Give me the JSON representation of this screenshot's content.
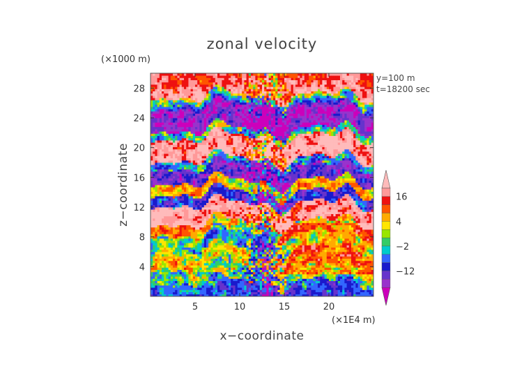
{
  "chart_data": {
    "type": "heatmap",
    "title": "zonal velocity",
    "xlabel": "x−coordinate",
    "ylabel": "z−coordinate",
    "x_unit": "(×1E4 m)",
    "y_unit": "(×1000 m)",
    "annotations": [
      "y=100 m",
      "t=18200 sec"
    ],
    "xlim": [
      0,
      25
    ],
    "ylim": [
      0,
      30
    ],
    "x_ticks": [
      5,
      10,
      15,
      20
    ],
    "x_tick_labels": [
      "5",
      "10",
      "15",
      "20"
    ],
    "y_ticks": [
      4,
      8,
      12,
      16,
      20,
      24,
      28
    ],
    "y_tick_labels": [
      "4",
      "8",
      "12",
      "16",
      "20",
      "24",
      "28"
    ],
    "colorbar": {
      "levels": [
        -20,
        -16,
        -12,
        -8,
        -4,
        -2,
        0,
        2,
        4,
        8,
        12,
        16,
        20
      ],
      "colors": [
        "#cc00bb",
        "#9933cc",
        "#6633cc",
        "#1a1acc",
        "#3366ff",
        "#00cccc",
        "#33cc66",
        "#99e600",
        "#ffe600",
        "#ffaa00",
        "#ff5500",
        "#ee1111",
        "#ff9999",
        "#ffbbbb"
      ],
      "tick_values": [
        16,
        4,
        -2,
        -12
      ],
      "tick_labels": [
        "16",
        "4",
        "−2",
        "−12"
      ],
      "extend": "both"
    },
    "description_field": "zonal velocity (m/s)",
    "grid": false,
    "legend_placement": "right"
  }
}
